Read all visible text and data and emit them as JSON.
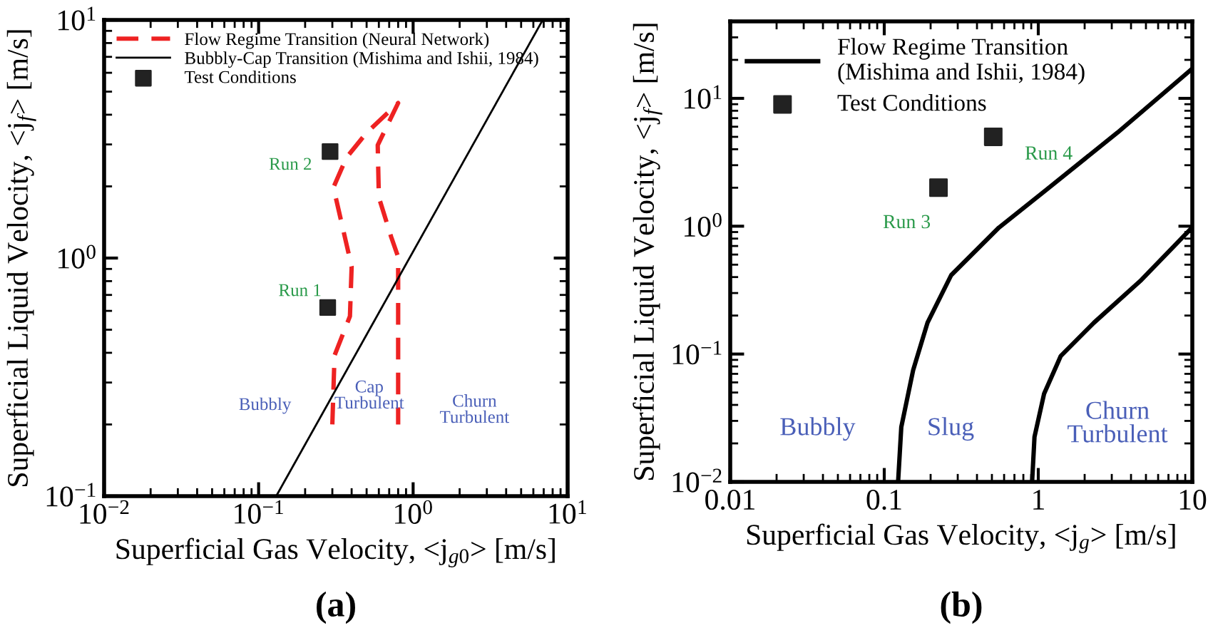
{
  "chart_data": [
    {
      "type": "line",
      "xlabel": "Superficial Gas Velocity, <j$_{g0}$> [m/s]",
      "ylabel": "Superficial Liquid Velocity, <j$_{f}$> [m/s]",
      "log": "xy",
      "xlim": [
        0.01,
        10
      ],
      "ylim": [
        0.1,
        10
      ],
      "xticks": [
        {
          "value": 0.01,
          "label": "10$^{−2}$"
        },
        {
          "value": 0.1,
          "label": "10$^{−1}$"
        },
        {
          "value": 1,
          "label": "10$^{0}$"
        },
        {
          "value": 10,
          "label": "10$^{1}$"
        }
      ],
      "yticks": [
        {
          "value": 0.1,
          "label": "10$^{−1}$"
        },
        {
          "value": 1,
          "label": "10$^{0}$"
        },
        {
          "value": 10,
          "label": "10$^{1}$"
        }
      ],
      "legend": "top left",
      "series": [
        {
          "name": "Flow Regime Transition (Neural Network)",
          "color": "#ee2222",
          "line_style": "dashed",
          "x": [
            0.3,
            0.31,
            0.39,
            0.4,
            0.305,
            0.37,
            0.5,
            0.8,
            0.59,
            0.6,
            0.72,
            0.8,
            0.8
          ],
          "values": [
            0.2,
            0.39,
            0.57,
            0.92,
            1.98,
            2.64,
            3.36,
            4.48,
            2.98,
            1.8,
            1.23,
            1.01,
            0.2
          ]
        },
        {
          "name": "Bubbly-Cap Transition (Mishima and Ishii, 1984)",
          "color": "#000000",
          "line_style": "solid",
          "x": [
            0.13,
            6.9
          ],
          "values": [
            0.1,
            10
          ]
        },
        {
          "name": "Test Conditions",
          "type": "scatter",
          "color": "#222222",
          "marker": "square",
          "x": [
            0.29,
            0.28
          ],
          "values": [
            2.8,
            0.62
          ]
        }
      ],
      "annotations": [
        {
          "text": "Run 2",
          "x": 0.29,
          "y": 2.8
        },
        {
          "text": "Run 1",
          "x": 0.28,
          "y": 0.62
        },
        "Bubbly",
        "Cap\nTurbulent",
        "Churn\nTurbulent",
        "(a)"
      ]
    },
    {
      "type": "line",
      "xlabel": "Superficial Gas Velocity, <j$_{g}$> [m/s]",
      "ylabel": "Superficial Liquid Velocity, <j$_{f}$> [m/s]",
      "log": "xy",
      "xlim": [
        0.01,
        10
      ],
      "ylim": [
        0.01,
        40
      ],
      "xticks": [
        0.01,
        0.1,
        1,
        10
      ],
      "yticks": [
        {
          "value": 0.01,
          "label": "10$^{−2}$"
        },
        {
          "value": 0.1,
          "label": "10$^{−1}$"
        },
        {
          "value": 1,
          "label": "10$^{0}$"
        },
        {
          "value": 10,
          "label": "10$^{1}$"
        }
      ],
      "legend": "top left",
      "series": [
        {
          "name": "Flow Regime Transition\n(Mishima and Ishii, 1984)",
          "color": "#000000",
          "line_style": "solid",
          "x": [
            0.123,
            0.129,
            0.154,
            0.191,
            0.272,
            0.555,
            1.13,
            3.27,
            10
          ],
          "values": [
            0.01,
            0.0268,
            0.0748,
            0.176,
            0.414,
            0.975,
            1.93,
            5.4,
            17.1
          ]
        },
        {
          "color": "#000000",
          "line_style": "solid",
          "x": [
            0.912,
            0.945,
            1.09,
            1.4,
            2.3,
            4.67,
            10
          ],
          "values": [
            0.01,
            0.0225,
            0.0488,
            0.0966,
            0.176,
            0.38,
            0.98
          ]
        },
        {
          "name": "Test Conditions",
          "type": "scatter",
          "color": "#222222",
          "marker": "square",
          "x": [
            0.225,
            0.51
          ],
          "values": [
            2.0,
            5.0
          ]
        }
      ],
      "annotations": [
        {
          "text": "Run 3",
          "x": 0.225,
          "y": 2.0
        },
        {
          "text": "Run 4",
          "x": 0.51,
          "y": 5.0
        },
        "Bubbly",
        "Slug",
        "Churn\nTurbulent",
        "(b)"
      ]
    }
  ]
}
